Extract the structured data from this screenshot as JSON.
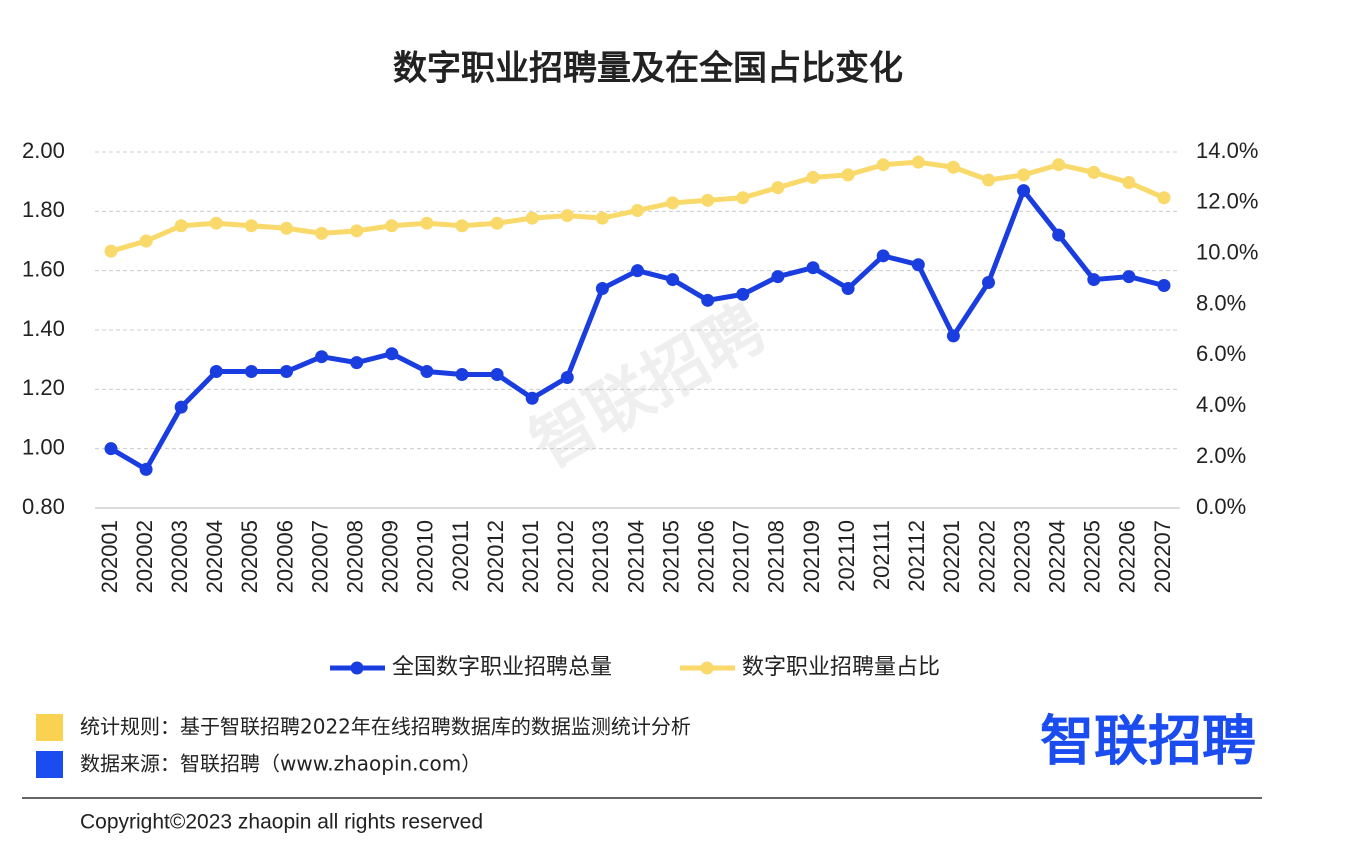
{
  "chart_data": {
    "type": "line",
    "title": "数字职业招聘量及在全国占比变化",
    "categories": [
      "202001",
      "202002",
      "202003",
      "202004",
      "202005",
      "202006",
      "202007",
      "202008",
      "202009",
      "202010",
      "202011",
      "202012",
      "202101",
      "202102",
      "202103",
      "202104",
      "202105",
      "202106",
      "202107",
      "202108",
      "202109",
      "202110",
      "202111",
      "202112",
      "202201",
      "202202",
      "202203",
      "202204",
      "202205",
      "202206",
      "202207"
    ],
    "series": [
      {
        "name": "全国数字职业招聘总量",
        "color": "#1a3de0",
        "values": [
          1.0,
          0.93,
          1.14,
          1.26,
          1.26,
          1.26,
          1.31,
          1.29,
          1.32,
          1.26,
          1.25,
          1.25,
          1.17,
          1.24,
          1.54,
          1.6,
          1.57,
          1.5,
          1.52,
          1.58,
          1.61,
          1.54,
          1.65,
          1.62,
          1.38,
          1.56,
          1.87,
          1.72,
          1.57,
          1.58,
          1.55
        ]
      },
      {
        "name": "数字职业招聘量占比",
        "color": "#f9d96a",
        "axis": "y2",
        "values": [
          10.1,
          10.5,
          11.1,
          11.2,
          11.1,
          11.0,
          10.8,
          10.9,
          11.1,
          11.2,
          11.1,
          11.2,
          11.4,
          11.5,
          11.4,
          11.7,
          12.0,
          12.1,
          12.2,
          12.6,
          13.0,
          13.1,
          13.5,
          13.6,
          13.4,
          12.9,
          13.1,
          13.5,
          13.2,
          12.8,
          12.2
        ]
      }
    ],
    "ylim": [
      0.8,
      2.0
    ],
    "yticks": [
      {
        "value": 0.8,
        "label": "0.80"
      },
      {
        "value": 1.0,
        "label": "1.00"
      },
      {
        "value": 1.2,
        "label": "1.20"
      },
      {
        "value": 1.4,
        "label": "1.40"
      },
      {
        "value": 1.6,
        "label": "1.60"
      },
      {
        "value": 1.8,
        "label": "1.80"
      },
      {
        "value": 2.0,
        "label": "2.00"
      }
    ],
    "y2lim": [
      0,
      14
    ],
    "y2ticks": [
      {
        "value": 0,
        "label": "0.0%"
      },
      {
        "value": 2,
        "label": "2.0%"
      },
      {
        "value": 4,
        "label": "4.0%"
      },
      {
        "value": 6,
        "label": "6.0%"
      },
      {
        "value": 8,
        "label": "8.0%"
      },
      {
        "value": 10,
        "label": "10.0%"
      },
      {
        "value": 12,
        "label": "12.0%"
      },
      {
        "value": 14,
        "label": "14.0%"
      }
    ],
    "grid": true,
    "legend": "bottom",
    "watermark": "智联招聘"
  },
  "notes": [
    {
      "text": "统计规则：基于智联招聘2022年在线招聘数据库的数据监测统计分析",
      "color": "#f9d252"
    },
    {
      "text": "数据来源：智联招聘（www.zhaopin.com）",
      "color": "#1a4cf0"
    }
  ],
  "logo": "智联招聘",
  "copyright": "Copyright©2023 zhaopin all rights reserved"
}
